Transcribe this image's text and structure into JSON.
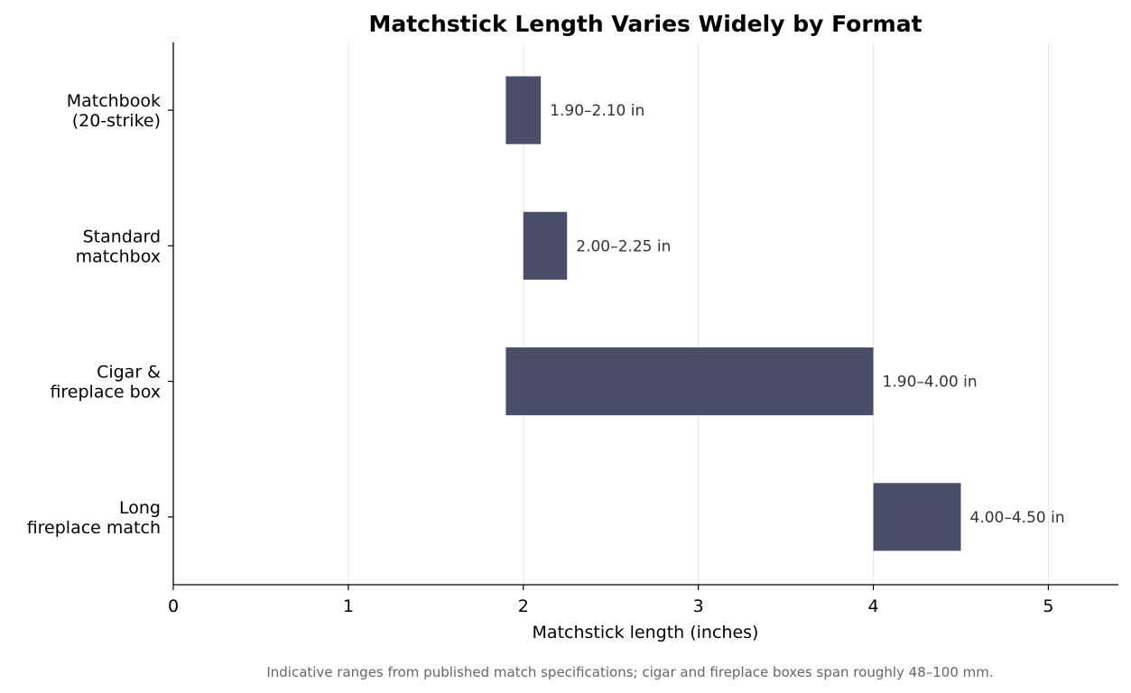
{
  "chart_data": {
    "type": "bar",
    "orientation": "horizontal",
    "title": "Matchstick Length Varies Widely by Format",
    "xlabel": "Matchstick length (inches)",
    "ylabel": "",
    "xlim": [
      0,
      5.4
    ],
    "xticks": [
      0,
      1,
      2,
      3,
      4,
      5
    ],
    "grid": "vertical",
    "legend": "none",
    "bar_color": "#4a4e69",
    "categories": [
      {
        "lines": [
          "Matchbook",
          "(20-strike)"
        ],
        "start": 1.9,
        "end": 2.1,
        "label": "1.90–2.10 in"
      },
      {
        "lines": [
          "Standard",
          "matchbox"
        ],
        "start": 2.0,
        "end": 2.25,
        "label": "2.00–2.25 in"
      },
      {
        "lines": [
          "Cigar &",
          "fireplace box"
        ],
        "start": 1.9,
        "end": 4.0,
        "label": "1.90–4.00 in"
      },
      {
        "lines": [
          "Long",
          "fireplace match"
        ],
        "start": 4.0,
        "end": 4.5,
        "label": "4.00–4.50 in"
      }
    ],
    "caption": "Indicative ranges from published match specifications; cigar and fireplace boxes span roughly 48–100 mm."
  }
}
